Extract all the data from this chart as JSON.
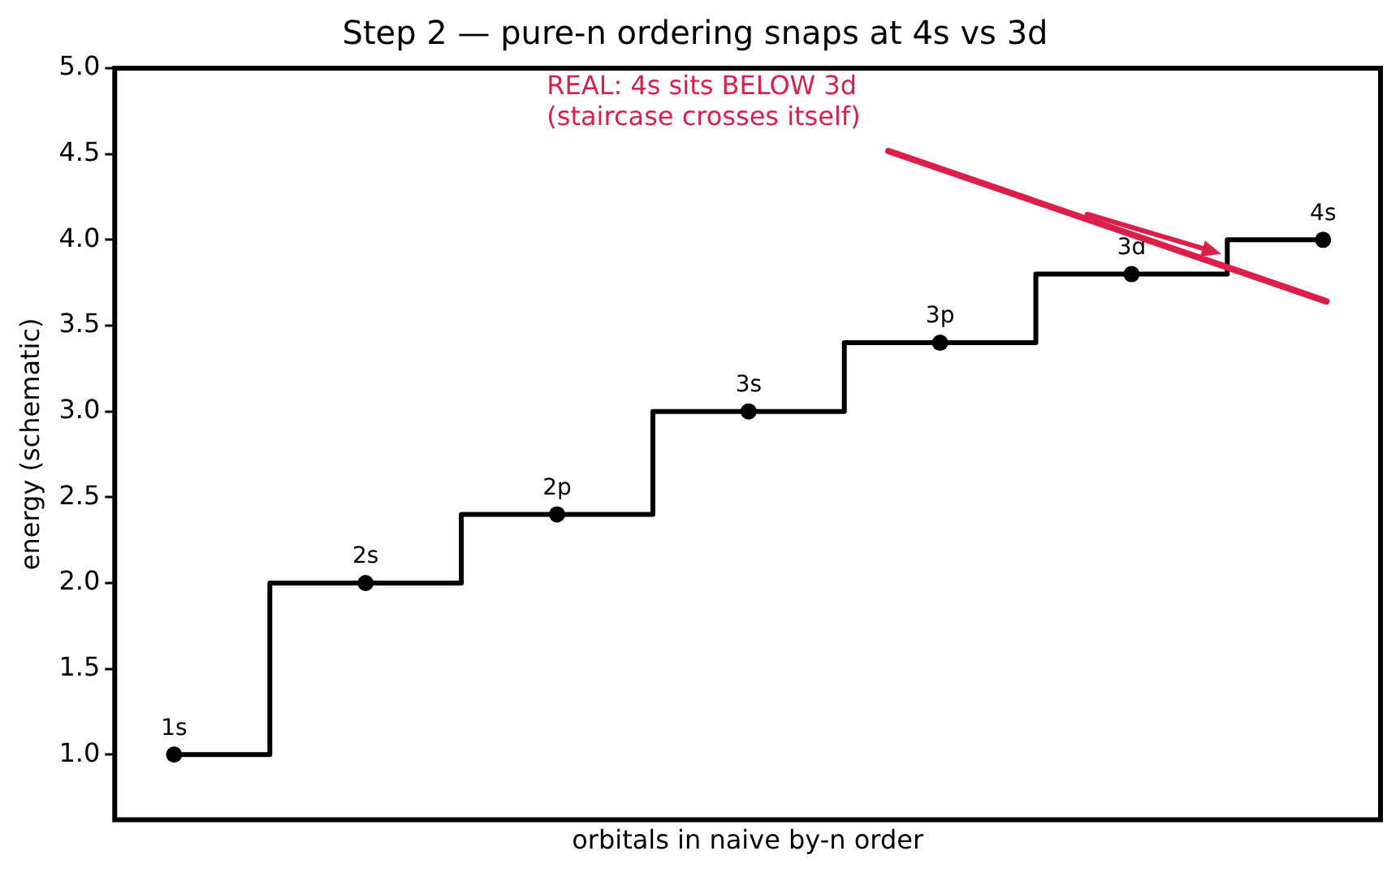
{
  "chart_data": {
    "type": "step",
    "title": "Step 2 — pure-n ordering snaps at 4s vs 3d",
    "xlabel": "orbitals in naive by-n order",
    "ylabel": "energy (schematic)",
    "categories": [
      null,
      null,
      null,
      null,
      null,
      null,
      null
    ],
    "ylim": [
      0.62,
      5.0
    ],
    "yticks": [
      {
        "value": 1,
        "label": "1.0"
      },
      {
        "value": 1.5,
        "label": "1.5"
      },
      {
        "value": 2,
        "label": "2.0"
      },
      {
        "value": 2.5,
        "label": "2.5"
      },
      {
        "value": 3,
        "label": "3.0"
      },
      {
        "value": 3.5,
        "label": "3.5"
      },
      {
        "value": 4,
        "label": "4.0"
      },
      {
        "value": 4.5,
        "label": "4.5"
      },
      {
        "value": 5,
        "label": "5.0"
      }
    ],
    "tick_labels": "y",
    "grid": false,
    "legend": false,
    "series": [
      {
        "color": "#000000",
        "marker": "circle",
        "values": [
          1.0,
          2.0,
          2.4,
          3.0,
          3.4,
          3.8,
          4.0
        ]
      }
    ],
    "annotations": [
      "REAL: 4s sits BELOW 3d\n(staircase crosses itself)",
      {
        "text": "1s",
        "y": 1.0
      },
      {
        "text": "2s",
        "y": 2.0
      },
      {
        "text": "2p",
        "y": 2.4
      },
      {
        "text": "3s",
        "y": 3.0
      },
      {
        "text": "3p",
        "y": 3.4
      },
      {
        "text": "3d",
        "y": 3.8
      },
      {
        "text": "4s",
        "y": 4.0
      }
    ]
  }
}
